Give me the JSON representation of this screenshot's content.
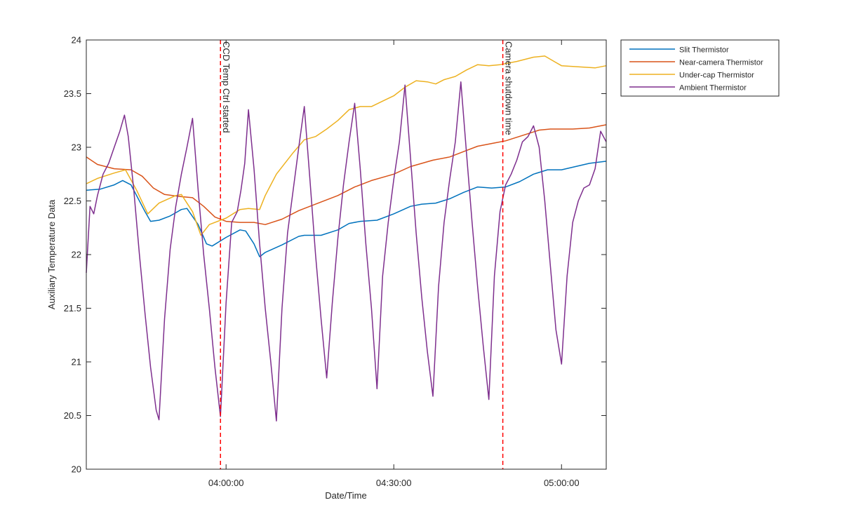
{
  "chart_data": {
    "type": "line",
    "title": "",
    "xlabel": "Date/Time",
    "ylabel": "Auxiliary Temperature Data",
    "x_unit": "time of day (HH:MM:SS)",
    "xlim": [
      "03:35:00",
      "05:08:00"
    ],
    "ylim": [
      20,
      24
    ],
    "x_ticks": [
      "04:00:00",
      "04:30:00",
      "05:00:00"
    ],
    "y_ticks": [
      "20",
      "20.5",
      "21",
      "21.5",
      "22",
      "22.5",
      "23",
      "23.5",
      "24"
    ],
    "grid": false,
    "legend_position": "outside-top-right",
    "annotations": [
      {
        "text": "CCD Temp Ctrl started",
        "x": "03:59:00",
        "color": "#ff0000",
        "style": "dashed"
      },
      {
        "text": "Camera shutdown time",
        "x": "04:49:30",
        "color": "#ff0000",
        "style": "dashed"
      }
    ],
    "series": [
      {
        "name": "Slit Thermistor",
        "color": "#0072bd",
        "points": [
          [
            "03:35:00",
            22.6
          ],
          [
            "03:37:30",
            22.61
          ],
          [
            "03:40:00",
            22.65
          ],
          [
            "03:41:30",
            22.69
          ],
          [
            "03:43:00",
            22.65
          ],
          [
            "03:45:30",
            22.4
          ],
          [
            "03:46:30",
            22.31
          ],
          [
            "03:48:00",
            22.32
          ],
          [
            "03:50:00",
            22.36
          ],
          [
            "03:52:00",
            22.42
          ],
          [
            "03:53:00",
            22.43
          ],
          [
            "03:55:00",
            22.28
          ],
          [
            "03:56:30",
            22.1
          ],
          [
            "03:57:30",
            22.08
          ],
          [
            "04:00:00",
            22.16
          ],
          [
            "04:02:30",
            22.23
          ],
          [
            "04:03:30",
            22.22
          ],
          [
            "04:05:00",
            22.1
          ],
          [
            "04:06:00",
            21.98
          ],
          [
            "04:07:00",
            22.02
          ],
          [
            "04:10:00",
            22.09
          ],
          [
            "04:13:00",
            22.17
          ],
          [
            "04:14:00",
            22.18
          ],
          [
            "04:17:00",
            22.18
          ],
          [
            "04:20:00",
            22.23
          ],
          [
            "04:22:00",
            22.29
          ],
          [
            "04:24:00",
            22.31
          ],
          [
            "04:27:00",
            22.32
          ],
          [
            "04:30:00",
            22.38
          ],
          [
            "04:33:00",
            22.45
          ],
          [
            "04:35:00",
            22.47
          ],
          [
            "04:37:30",
            22.48
          ],
          [
            "04:40:00",
            22.52
          ],
          [
            "04:42:30",
            22.58
          ],
          [
            "04:45:00",
            22.63
          ],
          [
            "04:47:30",
            22.62
          ],
          [
            "04:50:00",
            22.63
          ],
          [
            "04:52:30",
            22.68
          ],
          [
            "04:55:00",
            22.75
          ],
          [
            "04:57:30",
            22.79
          ],
          [
            "05:00:00",
            22.79
          ],
          [
            "05:02:30",
            22.82
          ],
          [
            "05:05:00",
            22.85
          ],
          [
            "05:08:00",
            22.87
          ]
        ]
      },
      {
        "name": "Near-camera Thermistor",
        "color": "#d95319",
        "points": [
          [
            "03:35:00",
            22.91
          ],
          [
            "03:37:00",
            22.84
          ],
          [
            "03:40:00",
            22.8
          ],
          [
            "03:43:00",
            22.79
          ],
          [
            "03:45:00",
            22.73
          ],
          [
            "03:47:00",
            22.62
          ],
          [
            "03:49:00",
            22.56
          ],
          [
            "03:52:00",
            22.54
          ],
          [
            "03:54:00",
            22.53
          ],
          [
            "03:56:00",
            22.45
          ],
          [
            "03:58:00",
            22.35
          ],
          [
            "04:00:00",
            22.31
          ],
          [
            "04:02:30",
            22.3
          ],
          [
            "04:05:00",
            22.3
          ],
          [
            "04:07:00",
            22.28
          ],
          [
            "04:10:00",
            22.33
          ],
          [
            "04:13:00",
            22.41
          ],
          [
            "04:16:00",
            22.47
          ],
          [
            "04:20:00",
            22.55
          ],
          [
            "04:23:00",
            22.63
          ],
          [
            "04:26:00",
            22.69
          ],
          [
            "04:30:00",
            22.75
          ],
          [
            "04:33:00",
            22.82
          ],
          [
            "04:37:00",
            22.88
          ],
          [
            "04:40:00",
            22.91
          ],
          [
            "04:43:00",
            22.97
          ],
          [
            "04:45:00",
            23.01
          ],
          [
            "04:48:00",
            23.04
          ],
          [
            "04:50:00",
            23.06
          ],
          [
            "04:53:00",
            23.11
          ],
          [
            "04:56:00",
            23.16
          ],
          [
            "04:58:00",
            23.17
          ],
          [
            "05:02:00",
            23.17
          ],
          [
            "05:05:00",
            23.18
          ],
          [
            "05:08:00",
            23.21
          ]
        ]
      },
      {
        "name": "Under-cap Thermistor",
        "color": "#edb120",
        "points": [
          [
            "03:35:00",
            22.66
          ],
          [
            "03:37:00",
            22.71
          ],
          [
            "03:40:00",
            22.76
          ],
          [
            "03:42:00",
            22.79
          ],
          [
            "03:44:00",
            22.6
          ],
          [
            "03:46:00",
            22.38
          ],
          [
            "03:48:00",
            22.48
          ],
          [
            "03:51:00",
            22.55
          ],
          [
            "03:52:00",
            22.56
          ],
          [
            "03:54:00",
            22.4
          ],
          [
            "03:55:30",
            22.18
          ],
          [
            "03:57:00",
            22.28
          ],
          [
            "04:00:00",
            22.34
          ],
          [
            "04:02:30",
            22.42
          ],
          [
            "04:04:00",
            22.43
          ],
          [
            "04:06:00",
            22.42
          ],
          [
            "04:07:00",
            22.55
          ],
          [
            "04:09:00",
            22.75
          ],
          [
            "04:12:00",
            22.95
          ],
          [
            "04:14:00",
            23.07
          ],
          [
            "04:16:00",
            23.1
          ],
          [
            "04:18:00",
            23.17
          ],
          [
            "04:20:00",
            23.25
          ],
          [
            "04:22:00",
            23.35
          ],
          [
            "04:24:00",
            23.38
          ],
          [
            "04:26:00",
            23.38
          ],
          [
            "04:28:00",
            23.43
          ],
          [
            "04:30:00",
            23.48
          ],
          [
            "04:32:00",
            23.56
          ],
          [
            "04:34:00",
            23.62
          ],
          [
            "04:36:00",
            23.61
          ],
          [
            "04:37:30",
            23.59
          ],
          [
            "04:39:00",
            23.63
          ],
          [
            "04:41:00",
            23.66
          ],
          [
            "04:43:00",
            23.72
          ],
          [
            "04:45:00",
            23.77
          ],
          [
            "04:47:00",
            23.76
          ],
          [
            "04:49:00",
            23.77
          ],
          [
            "04:52:00",
            23.8
          ],
          [
            "04:55:00",
            23.84
          ],
          [
            "04:57:00",
            23.85
          ],
          [
            "04:59:00",
            23.79
          ],
          [
            "05:00:00",
            23.76
          ],
          [
            "05:03:00",
            23.75
          ],
          [
            "05:06:00",
            23.74
          ],
          [
            "05:08:00",
            23.76
          ]
        ]
      },
      {
        "name": "Ambient Thermistor",
        "color": "#7e2f8e",
        "points": [
          [
            "03:35:00",
            21.83
          ],
          [
            "03:35:40",
            22.45
          ],
          [
            "03:36:20",
            22.38
          ],
          [
            "03:37:00",
            22.55
          ],
          [
            "03:38:00",
            22.75
          ],
          [
            "03:39:00",
            22.85
          ],
          [
            "03:40:00",
            23.0
          ],
          [
            "03:41:00",
            23.15
          ],
          [
            "03:41:50",
            23.3
          ],
          [
            "03:42:30",
            23.1
          ],
          [
            "03:43:30",
            22.6
          ],
          [
            "03:44:30",
            22.0
          ],
          [
            "03:45:30",
            21.45
          ],
          [
            "03:46:30",
            20.95
          ],
          [
            "03:47:30",
            20.55
          ],
          [
            "03:48:00",
            20.46
          ],
          [
            "03:49:00",
            21.4
          ],
          [
            "03:50:00",
            22.05
          ],
          [
            "03:51:00",
            22.45
          ],
          [
            "03:52:00",
            22.75
          ],
          [
            "03:53:00",
            23.0
          ],
          [
            "03:54:00",
            23.27
          ],
          [
            "03:55:00",
            22.6
          ],
          [
            "03:56:00",
            22.0
          ],
          [
            "03:57:00",
            21.5
          ],
          [
            "03:58:00",
            20.95
          ],
          [
            "03:59:00",
            20.49
          ],
          [
            "04:00:00",
            21.55
          ],
          [
            "04:01:00",
            22.3
          ],
          [
            "04:02:00",
            22.4
          ],
          [
            "04:02:40",
            22.6
          ],
          [
            "04:03:20",
            22.85
          ],
          [
            "04:04:00",
            23.35
          ],
          [
            "04:05:00",
            22.8
          ],
          [
            "04:06:00",
            22.1
          ],
          [
            "04:07:00",
            21.5
          ],
          [
            "04:08:00",
            21.0
          ],
          [
            "04:09:00",
            20.45
          ],
          [
            "04:10:00",
            21.5
          ],
          [
            "04:11:00",
            22.2
          ],
          [
            "04:12:00",
            22.6
          ],
          [
            "04:13:00",
            23.0
          ],
          [
            "04:14:00",
            23.38
          ],
          [
            "04:15:00",
            22.7
          ],
          [
            "04:16:00",
            22.0
          ],
          [
            "04:17:00",
            21.4
          ],
          [
            "04:18:00",
            20.85
          ],
          [
            "04:19:00",
            21.55
          ],
          [
            "04:20:00",
            22.15
          ],
          [
            "04:21:00",
            22.65
          ],
          [
            "04:22:00",
            23.05
          ],
          [
            "04:23:00",
            23.41
          ],
          [
            "04:24:00",
            22.8
          ],
          [
            "04:25:00",
            22.1
          ],
          [
            "04:26:00",
            21.5
          ],
          [
            "04:27:00",
            20.75
          ],
          [
            "04:28:00",
            21.8
          ],
          [
            "04:29:00",
            22.3
          ],
          [
            "04:30:00",
            22.7
          ],
          [
            "04:31:00",
            23.05
          ],
          [
            "04:32:00",
            23.58
          ],
          [
            "04:33:00",
            22.9
          ],
          [
            "04:34:00",
            22.2
          ],
          [
            "04:35:00",
            21.6
          ],
          [
            "04:36:00",
            21.1
          ],
          [
            "04:37:00",
            20.68
          ],
          [
            "04:38:00",
            21.7
          ],
          [
            "04:39:00",
            22.3
          ],
          [
            "04:40:00",
            22.7
          ],
          [
            "04:41:00",
            23.05
          ],
          [
            "04:42:00",
            23.61
          ],
          [
            "04:43:00",
            22.95
          ],
          [
            "04:44:00",
            22.3
          ],
          [
            "04:45:00",
            21.7
          ],
          [
            "04:46:00",
            21.15
          ],
          [
            "04:47:00",
            20.65
          ],
          [
            "04:48:00",
            21.8
          ],
          [
            "04:49:00",
            22.4
          ],
          [
            "04:50:00",
            22.65
          ],
          [
            "04:51:00",
            22.75
          ],
          [
            "04:52:00",
            22.88
          ],
          [
            "04:53:00",
            23.05
          ],
          [
            "04:54:00",
            23.1
          ],
          [
            "04:55:00",
            23.2
          ],
          [
            "04:56:00",
            23.0
          ],
          [
            "04:57:00",
            22.5
          ],
          [
            "04:58:00",
            21.9
          ],
          [
            "04:59:00",
            21.3
          ],
          [
            "05:00:00",
            20.98
          ],
          [
            "05:01:00",
            21.8
          ],
          [
            "05:02:00",
            22.3
          ],
          [
            "05:03:00",
            22.5
          ],
          [
            "05:04:00",
            22.62
          ],
          [
            "05:05:00",
            22.65
          ],
          [
            "05:06:00",
            22.8
          ],
          [
            "05:07:00",
            23.15
          ],
          [
            "05:08:00",
            23.05
          ]
        ]
      }
    ]
  }
}
